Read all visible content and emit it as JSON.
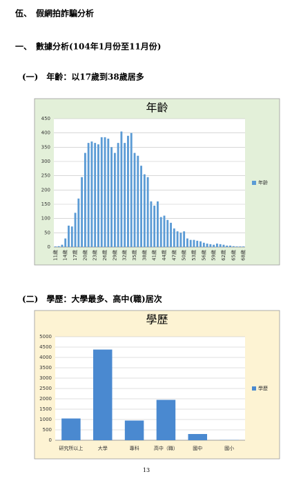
{
  "document": {
    "heading": "伍、　假網拍詐騙分析",
    "section": "一、　數據分析(104年1月份至11月份)",
    "subsection_1": "(一)　年齡：以17歲到38歲居多",
    "subsection_2": "(二)　學歷：大學最多、高中(職)居次",
    "page_number": "13"
  },
  "chart_data": [
    {
      "type": "bar",
      "title": "年齡",
      "categories": [
        "11歲",
        null,
        null,
        "14歲",
        null,
        null,
        "17歲",
        null,
        null,
        "20歲",
        null,
        null,
        "23歲",
        null,
        null,
        "26歲",
        null,
        null,
        "29歲",
        null,
        null,
        "32歲",
        null,
        null,
        "35歲",
        null,
        null,
        "38歲",
        null,
        null,
        "41歲",
        null,
        null,
        "44歲",
        null,
        null,
        "47歲",
        null,
        null,
        "50歲",
        null,
        null,
        "53歲",
        null,
        null,
        "56歲",
        null,
        null,
        "59歲",
        null,
        null,
        "62歲",
        null,
        null,
        "65歲",
        null,
        null,
        "68歲"
      ],
      "series": [
        {
          "name": "年齡",
          "color": "#5b9bd5",
          "values": [
            2,
            3,
            8,
            30,
            75,
            72,
            120,
            170,
            245,
            330,
            365,
            370,
            365,
            360,
            385,
            385,
            380,
            350,
            330,
            365,
            405,
            365,
            390,
            400,
            330,
            320,
            285,
            255,
            245,
            160,
            145,
            160,
            105,
            110,
            95,
            85,
            65,
            55,
            50,
            55,
            30,
            25,
            25,
            22,
            20,
            15,
            12,
            10,
            8,
            12,
            10,
            8,
            5,
            5,
            3,
            2,
            2,
            2
          ]
        }
      ],
      "ylim": [
        0,
        450
      ],
      "yticks": [
        0,
        50,
        100,
        150,
        200,
        250,
        300,
        350,
        400,
        450
      ],
      "grid": true,
      "legend": "right",
      "background": "#e3f0d9"
    },
    {
      "type": "bar",
      "title": "學歷",
      "categories": [
        "研究所以上",
        "大學",
        "專科",
        "高中（職）",
        "國中",
        "國小"
      ],
      "series": [
        {
          "name": "學歷",
          "color": "#4a89d0",
          "values": [
            1050,
            4380,
            950,
            1950,
            300,
            10
          ]
        }
      ],
      "ylim": [
        0,
        5000
      ],
      "yticks": [
        0,
        500,
        1000,
        1500,
        2000,
        2500,
        3000,
        3500,
        4000,
        4500,
        5000
      ],
      "grid": true,
      "legend": "right",
      "background": "#fdf3d3"
    }
  ]
}
